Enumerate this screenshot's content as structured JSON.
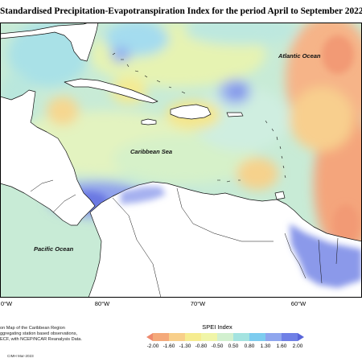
{
  "title": "Standardised Precipitation-Evapotranspiration Index for the period April to September 2022",
  "map_labels": {
    "atlantic": "Atlantic Ocean",
    "caribbean": "Caribbean Sea",
    "pacific": "Pacific Ocean"
  },
  "longitude_ticks": [
    "0°W",
    "80°W",
    "70°W",
    "60°W"
  ],
  "note_lines": [
    "on Map of the Caribbean Region",
    "ggregating station based observations,",
    "ECF, with NCEP/NCAR Reanalysis Data."
  ],
  "credit": "CIMH Mar-2023",
  "legend": {
    "title": "SPEI Index",
    "labels": [
      "-2.00",
      "-1.60",
      "-1.30",
      "-0.80",
      "-0.50",
      "0.50",
      "0.80",
      "1.30",
      "1.60",
      "2.00"
    ],
    "colors": [
      "#ee8a6e",
      "#f4a97a",
      "#f8cf8a",
      "#f6ec90",
      "#f0f5a8",
      "#d2f0cf",
      "#a4e3e0",
      "#7dccef",
      "#8fa6ee",
      "#6f80e6",
      "#5865d9"
    ]
  },
  "colors": {
    "land": "#ffffff",
    "dry": "#f7b083",
    "neutral": "#dcf1d0",
    "wet": "#7f8ce8"
  }
}
